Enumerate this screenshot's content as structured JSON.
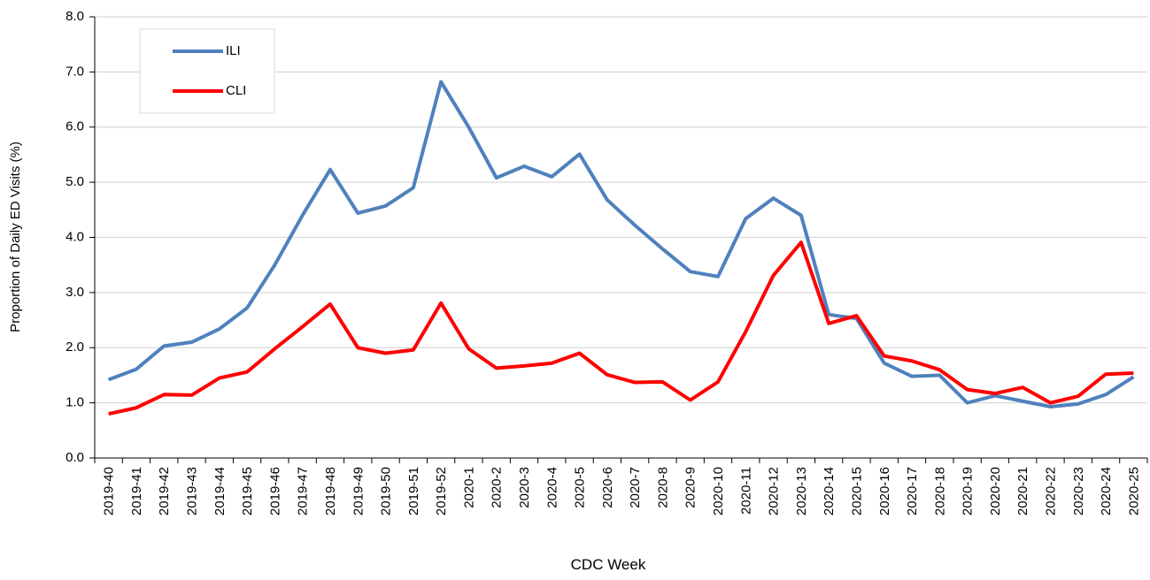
{
  "chart_data": {
    "type": "line",
    "xlabel": "CDC Week",
    "ylabel": "Proportion of Daily ED Visits (%)",
    "categories": [
      "2019-40",
      "2019-41",
      "2019-42",
      "2019-43",
      "2019-44",
      "2019-45",
      "2019-46",
      "2019-47",
      "2019-48",
      "2019-49",
      "2019-50",
      "2019-51",
      "2019-52",
      "2020-1",
      "2020-2",
      "2020-3",
      "2020-4",
      "2020-5",
      "2020-6",
      "2020-7",
      "2020-8",
      "2020-9",
      "2020-10",
      "2020-11",
      "2020-12",
      "2020-13",
      "2020-14",
      "2020-15",
      "2020-16",
      "2020-17",
      "2020-18",
      "2020-19",
      "2020-20",
      "2020-21",
      "2020-22",
      "2020-23",
      "2020-24",
      "2020-25"
    ],
    "series": [
      {
        "name": "ILI",
        "color": "#4f81bd",
        "values": [
          1.42,
          1.61,
          2.03,
          2.1,
          2.34,
          2.72,
          3.5,
          4.4,
          5.23,
          4.44,
          4.57,
          4.9,
          6.82,
          6.0,
          5.08,
          5.29,
          5.1,
          5.51,
          4.68,
          4.22,
          3.79,
          3.38,
          3.29,
          4.34,
          4.71,
          4.4,
          2.6,
          2.53,
          1.72,
          1.48,
          1.5,
          1.0,
          1.13,
          1.03,
          0.93,
          0.98,
          1.15,
          1.47
        ]
      },
      {
        "name": "CLI",
        "color": "#ff0000",
        "values": [
          0.8,
          0.91,
          1.15,
          1.14,
          1.45,
          1.56,
          1.98,
          2.38,
          2.79,
          2.0,
          1.9,
          1.96,
          2.81,
          1.98,
          1.63,
          1.67,
          1.72,
          1.9,
          1.51,
          1.37,
          1.38,
          1.05,
          1.38,
          2.29,
          3.31,
          3.91,
          2.44,
          2.58,
          1.85,
          1.76,
          1.6,
          1.24,
          1.17,
          1.28,
          1.0,
          1.12,
          1.52,
          1.54
        ]
      }
    ],
    "ylim": [
      0,
      8
    ],
    "yticks": [
      {
        "value": 0,
        "label": "0.0"
      },
      {
        "value": 1,
        "label": "1.0"
      },
      {
        "value": 2,
        "label": "2.0"
      },
      {
        "value": 3,
        "label": "3.0"
      },
      {
        "value": 4,
        "label": "4.0"
      },
      {
        "value": 5,
        "label": "5.0"
      },
      {
        "value": 6,
        "label": "6.0"
      },
      {
        "value": 7,
        "label": "7.0"
      },
      {
        "value": 8,
        "label": "8.0"
      }
    ],
    "grid": true,
    "legend": "upper left"
  }
}
